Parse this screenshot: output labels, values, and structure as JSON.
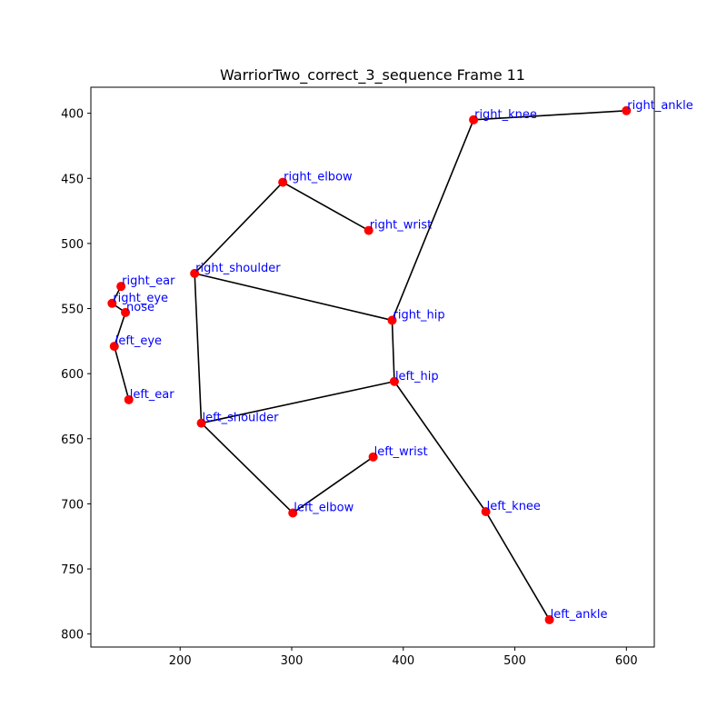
{
  "chart_data": {
    "type": "scatter",
    "title": "WarriorTwo_correct_3_sequence Frame 11",
    "xlabel": "",
    "ylabel": "",
    "xlim": [
      120,
      625
    ],
    "ylim": [
      810,
      380
    ],
    "y_inverted": true,
    "grid": false,
    "xticks": [
      200,
      300,
      400,
      500,
      600
    ],
    "yticks": [
      400,
      450,
      500,
      550,
      600,
      650,
      700,
      750,
      800
    ],
    "point_color": "#ff0000",
    "label_color": "#0000ff",
    "edge_color": "#000000",
    "points": [
      {
        "name": "right_ankle",
        "x": 600,
        "y": 398
      },
      {
        "name": "right_knee",
        "x": 463,
        "y": 405
      },
      {
        "name": "right_elbow",
        "x": 292,
        "y": 453
      },
      {
        "name": "right_wrist",
        "x": 369,
        "y": 490
      },
      {
        "name": "right_shoulder",
        "x": 213,
        "y": 523
      },
      {
        "name": "right_ear",
        "x": 147,
        "y": 533
      },
      {
        "name": "right_eye",
        "x": 139,
        "y": 546
      },
      {
        "name": "nose",
        "x": 151,
        "y": 553
      },
      {
        "name": "right_hip",
        "x": 390,
        "y": 559
      },
      {
        "name": "left_eye",
        "x": 141,
        "y": 579
      },
      {
        "name": "left_hip",
        "x": 392,
        "y": 606
      },
      {
        "name": "left_ear",
        "x": 154,
        "y": 620
      },
      {
        "name": "left_shoulder",
        "x": 219,
        "y": 638
      },
      {
        "name": "left_wrist",
        "x": 373,
        "y": 664
      },
      {
        "name": "left_elbow",
        "x": 301,
        "y": 707
      },
      {
        "name": "left_knee",
        "x": 474,
        "y": 706
      },
      {
        "name": "left_ankle",
        "x": 531,
        "y": 789
      }
    ],
    "edges": [
      [
        "right_ankle",
        "right_knee"
      ],
      [
        "right_knee",
        "right_hip"
      ],
      [
        "right_hip",
        "left_hip"
      ],
      [
        "left_hip",
        "left_knee"
      ],
      [
        "left_knee",
        "left_ankle"
      ],
      [
        "right_shoulder",
        "right_elbow"
      ],
      [
        "right_elbow",
        "right_wrist"
      ],
      [
        "right_shoulder",
        "right_hip"
      ],
      [
        "right_shoulder",
        "left_shoulder"
      ],
      [
        "left_shoulder",
        "left_hip"
      ],
      [
        "left_shoulder",
        "left_elbow"
      ],
      [
        "left_elbow",
        "left_wrist"
      ],
      [
        "right_ear",
        "right_eye"
      ],
      [
        "right_eye",
        "nose"
      ],
      [
        "nose",
        "left_eye"
      ],
      [
        "left_eye",
        "left_ear"
      ]
    ]
  }
}
